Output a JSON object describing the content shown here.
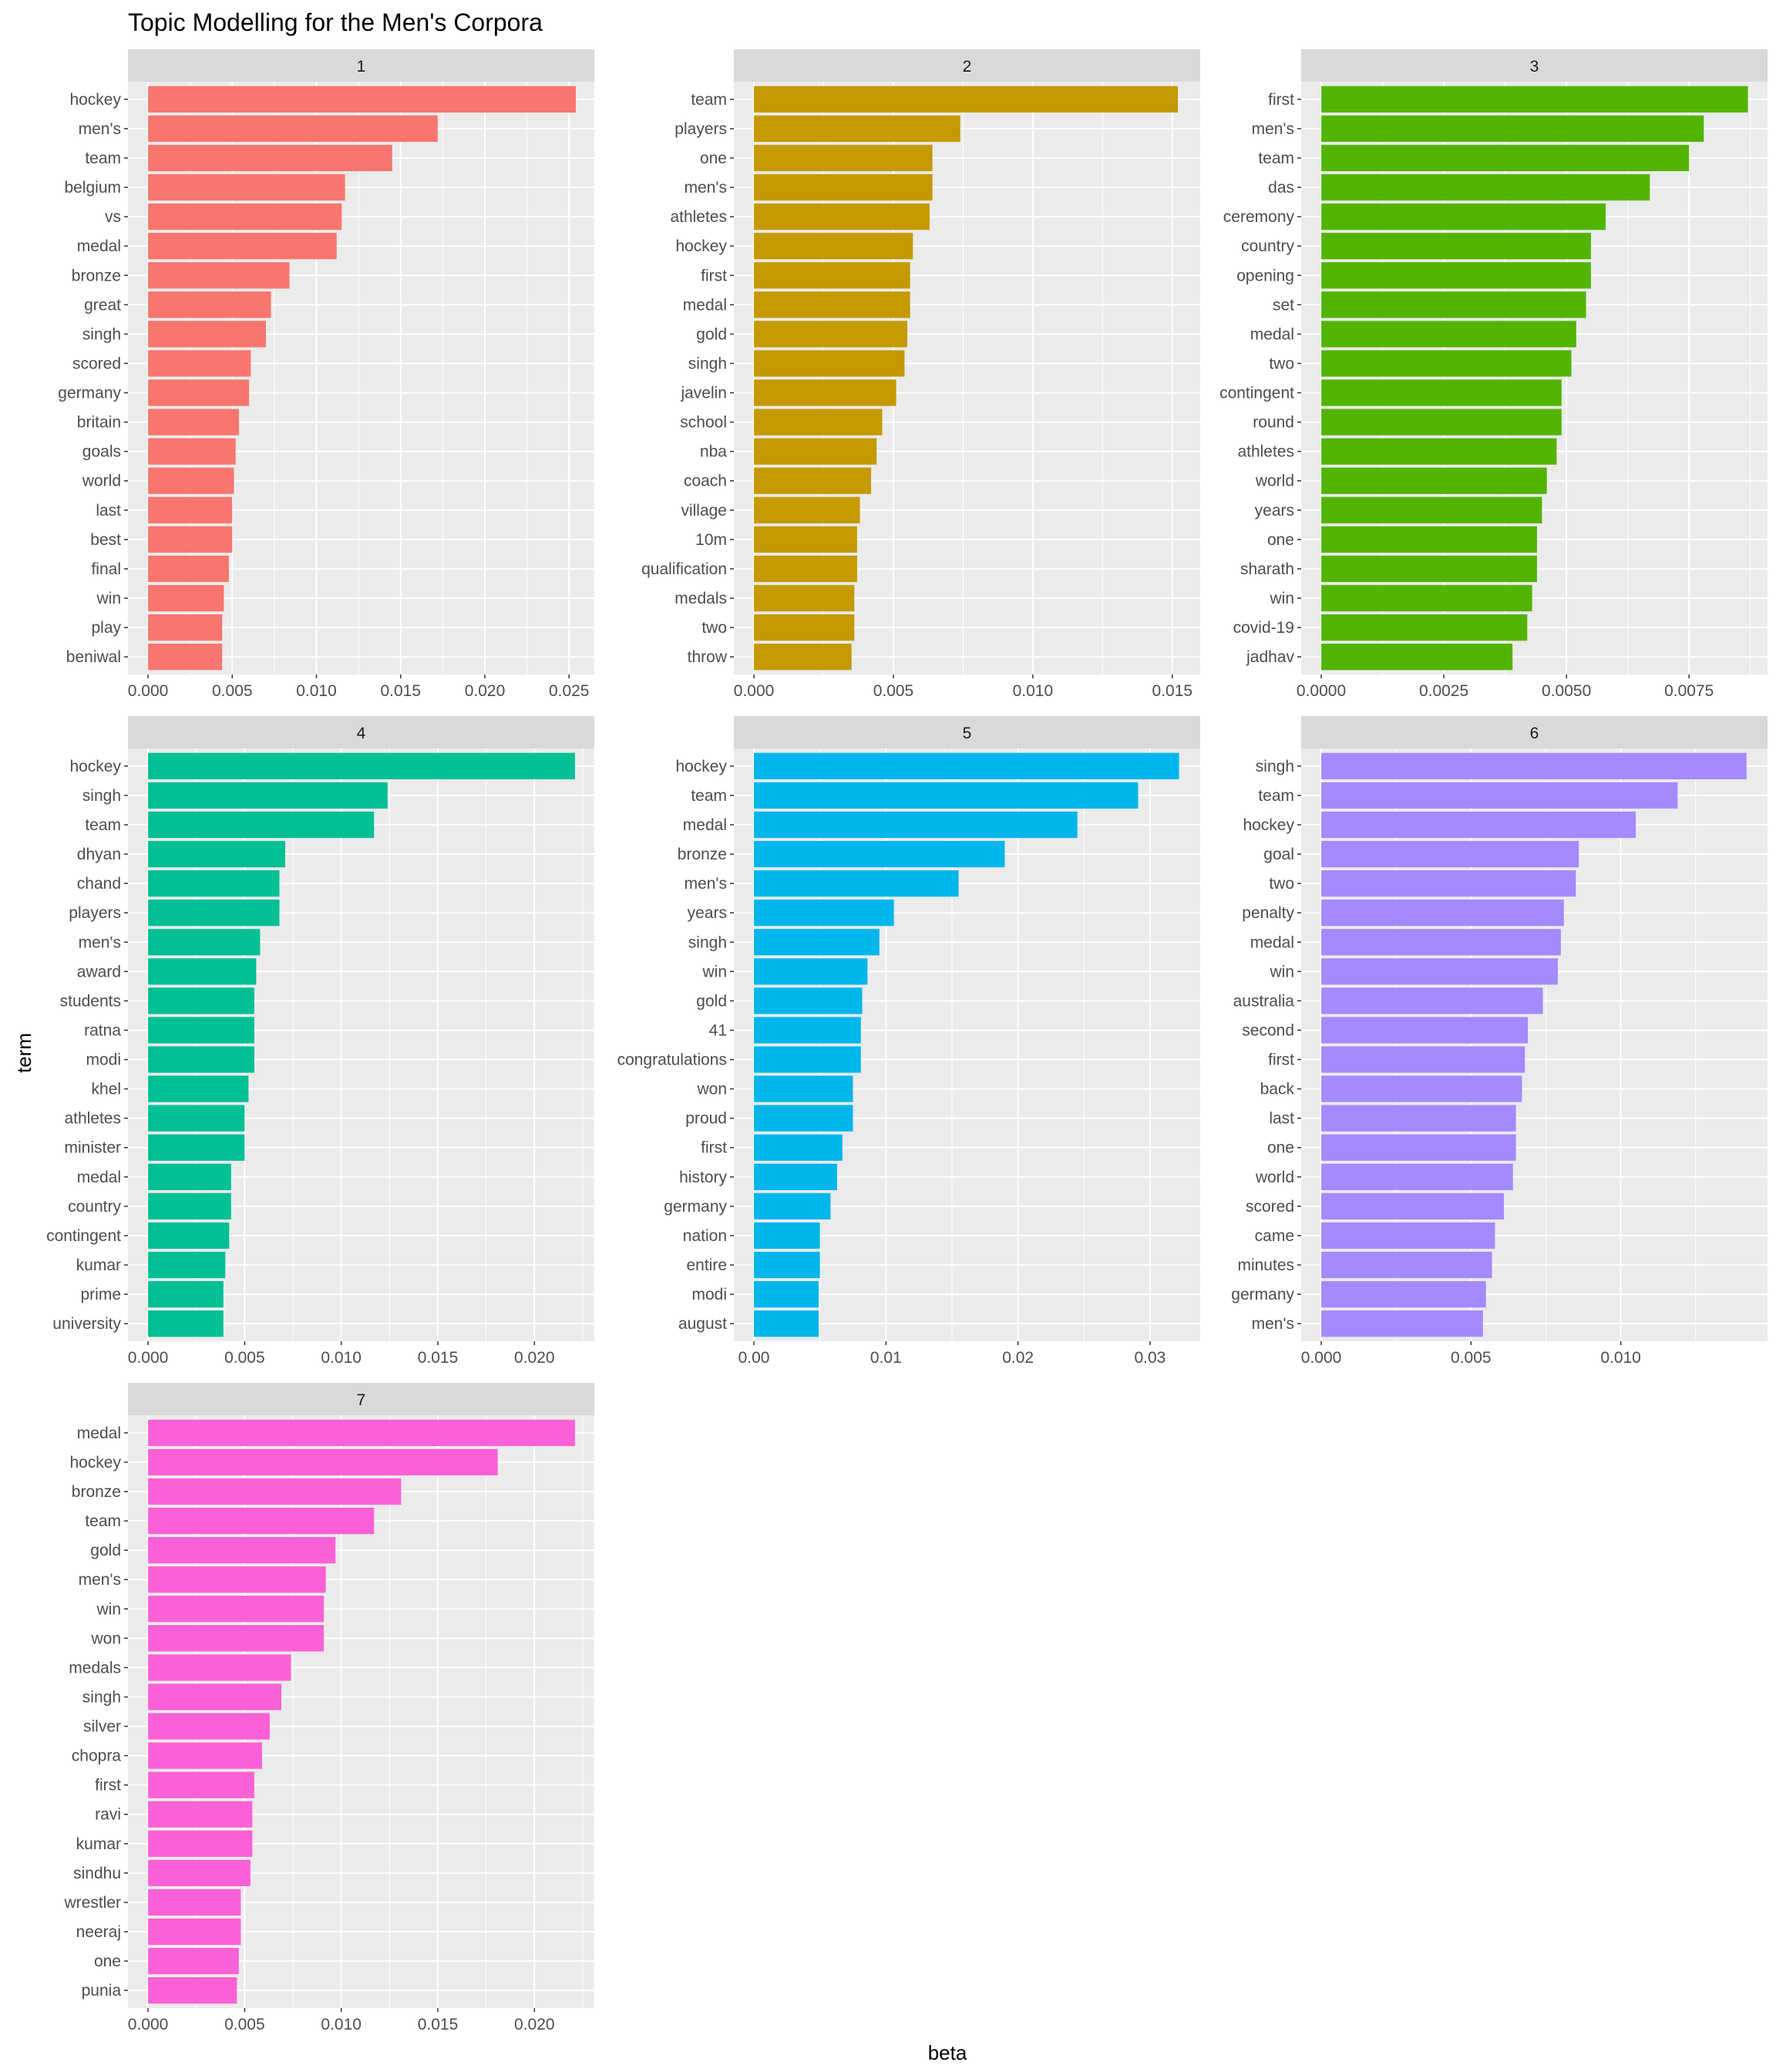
{
  "chart_data": {
    "type": "bar",
    "orientation": "horizontal",
    "title": "Topic Modelling for the Men's Corpora",
    "xlabel": "beta",
    "ylabel": "term",
    "grid": true,
    "legend": "none",
    "facets": [
      {
        "name": "1",
        "color": "#F8766D",
        "xlim": [
          0,
          0.0265
        ],
        "xticks": [
          0,
          0.005,
          0.01,
          0.015,
          0.02,
          0.025
        ],
        "xtick_labels": [
          "0.000",
          "0.005",
          "0.010",
          "0.015",
          "0.020",
          "0.025"
        ],
        "categories": [
          "hockey",
          "men's",
          "team",
          "belgium",
          "vs",
          "medal",
          "bronze",
          "great",
          "singh",
          "scored",
          "germany",
          "britain",
          "goals",
          "world",
          "last",
          "best",
          "final",
          "win",
          "play",
          "beniwal"
        ],
        "values": [
          0.0254,
          0.0172,
          0.0145,
          0.0117,
          0.0115,
          0.0112,
          0.0084,
          0.0073,
          0.007,
          0.0061,
          0.006,
          0.0054,
          0.0052,
          0.0051,
          0.005,
          0.005,
          0.0048,
          0.0045,
          0.0044,
          0.0044
        ]
      },
      {
        "name": "2",
        "color": "#C49A00",
        "xlim": [
          0,
          0.016
        ],
        "xticks": [
          0,
          0.005,
          0.01,
          0.015
        ],
        "xtick_labels": [
          "0.000",
          "0.005",
          "0.010",
          "0.015"
        ],
        "categories": [
          "team",
          "players",
          "one",
          "men's",
          "athletes",
          "hockey",
          "first",
          "medal",
          "gold",
          "singh",
          "javelin",
          "school",
          "nba",
          "coach",
          "village",
          "10m",
          "qualification",
          "medals",
          "two",
          "throw"
        ],
        "values": [
          0.0152,
          0.0074,
          0.0064,
          0.0064,
          0.0063,
          0.0057,
          0.0056,
          0.0056,
          0.0055,
          0.0054,
          0.0051,
          0.0046,
          0.0044,
          0.0042,
          0.0038,
          0.0037,
          0.0037,
          0.0036,
          0.0036,
          0.0035
        ]
      },
      {
        "name": "3",
        "color": "#53B400",
        "xlim": [
          0,
          0.0091
        ],
        "xticks": [
          0,
          0.0025,
          0.005,
          0.0075
        ],
        "xtick_labels": [
          "0.0000",
          "0.0025",
          "0.0050",
          "0.0075"
        ],
        "categories": [
          "first",
          "men's",
          "team",
          "das",
          "ceremony",
          "country",
          "opening",
          "set",
          "medal",
          "two",
          "contingent",
          "round",
          "athletes",
          "world",
          "years",
          "one",
          "sharath",
          "win",
          "covid-19",
          "jadhav"
        ],
        "values": [
          0.0087,
          0.0078,
          0.0075,
          0.0067,
          0.0058,
          0.0055,
          0.0055,
          0.0054,
          0.0052,
          0.0051,
          0.0049,
          0.0049,
          0.0048,
          0.0046,
          0.0045,
          0.0044,
          0.0044,
          0.0043,
          0.0042,
          0.0039
        ]
      },
      {
        "name": "4",
        "color": "#00C094",
        "xlim": [
          0,
          0.0231
        ],
        "xticks": [
          0,
          0.005,
          0.01,
          0.015,
          0.02
        ],
        "xtick_labels": [
          "0.000",
          "0.005",
          "0.010",
          "0.015",
          "0.020"
        ],
        "categories": [
          "hockey",
          "singh",
          "team",
          "dhyan",
          "chand",
          "players",
          "men's",
          "award",
          "students",
          "ratna",
          "modi",
          "khel",
          "athletes",
          "minister",
          "medal",
          "country",
          "contingent",
          "kumar",
          "prime",
          "university"
        ],
        "values": [
          0.0221,
          0.0124,
          0.0117,
          0.0071,
          0.0068,
          0.0068,
          0.0058,
          0.0056,
          0.0055,
          0.0055,
          0.0055,
          0.0052,
          0.005,
          0.005,
          0.0043,
          0.0043,
          0.0042,
          0.004,
          0.0039,
          0.0039
        ]
      },
      {
        "name": "5",
        "color": "#00B6EB",
        "xlim": [
          0,
          0.0338
        ],
        "xticks": [
          0,
          0.01,
          0.02,
          0.03
        ],
        "xtick_labels": [
          "0.00",
          "0.01",
          "0.02",
          "0.03"
        ],
        "categories": [
          "hockey",
          "team",
          "medal",
          "bronze",
          "men's",
          "years",
          "singh",
          "win",
          "gold",
          "41",
          "congratulations",
          "won",
          "proud",
          "first",
          "history",
          "germany",
          "nation",
          "entire",
          "modi",
          "august"
        ],
        "values": [
          0.0322,
          0.0291,
          0.0245,
          0.019,
          0.0155,
          0.0106,
          0.0095,
          0.0086,
          0.0082,
          0.0081,
          0.0081,
          0.0075,
          0.0075,
          0.0067,
          0.0063,
          0.0058,
          0.005,
          0.005,
          0.0049,
          0.0049
        ]
      },
      {
        "name": "6",
        "color": "#A58AFF",
        "xlim": [
          0,
          0.0149
        ],
        "xticks": [
          0,
          0.005,
          0.01
        ],
        "xtick_labels": [
          "0.000",
          "0.005",
          "0.010"
        ],
        "categories": [
          "singh",
          "team",
          "hockey",
          "goal",
          "two",
          "penalty",
          "medal",
          "win",
          "australia",
          "second",
          "first",
          "back",
          "last",
          "one",
          "world",
          "scored",
          "came",
          "minutes",
          "germany",
          "men's"
        ],
        "values": [
          0.0142,
          0.0119,
          0.0105,
          0.0086,
          0.0085,
          0.0081,
          0.008,
          0.0079,
          0.0074,
          0.0069,
          0.0068,
          0.0067,
          0.0065,
          0.0065,
          0.0064,
          0.0061,
          0.0058,
          0.0057,
          0.0055,
          0.0054
        ]
      },
      {
        "name": "7",
        "color": "#FB61D7",
        "xlim": [
          0,
          0.0231
        ],
        "xticks": [
          0,
          0.005,
          0.01,
          0.015,
          0.02
        ],
        "xtick_labels": [
          "0.000",
          "0.005",
          "0.010",
          "0.015",
          "0.020"
        ],
        "categories": [
          "medal",
          "hockey",
          "bronze",
          "team",
          "gold",
          "men's",
          "win",
          "won",
          "medals",
          "singh",
          "silver",
          "chopra",
          "first",
          "ravi",
          "kumar",
          "sindhu",
          "wrestler",
          "neeraj",
          "one",
          "punia"
        ],
        "values": [
          0.0221,
          0.0181,
          0.0131,
          0.0117,
          0.0097,
          0.0092,
          0.0091,
          0.0091,
          0.0074,
          0.0069,
          0.0063,
          0.0059,
          0.0055,
          0.0054,
          0.0054,
          0.0053,
          0.0048,
          0.0048,
          0.0047,
          0.0046
        ]
      }
    ]
  }
}
